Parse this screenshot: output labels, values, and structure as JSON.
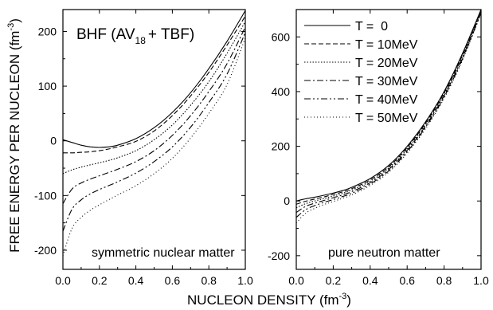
{
  "figure": {
    "ylabel": "FREE ENERGY PER NUCLEON (fm",
    "ylabel_sup": "-3",
    "ylabel_close": ")",
    "xlabel": "NUCLEON DENSITY (fm",
    "xlabel_sup": "-3",
    "xlabel_close": ")"
  },
  "chart_data": [
    {
      "type": "line",
      "panel_label": "symmetric nuclear matter",
      "inset_title": "BHF (AV",
      "inset_title_sub": "18",
      "inset_title_rest": "+ TBF)",
      "xlabel": "NUCLEON DENSITY (fm-3)",
      "ylabel": "FREE ENERGY PER NUCLEON (fm-3)",
      "xlim": [
        0.0,
        1.0
      ],
      "ylim": [
        -235,
        240
      ],
      "xticks": [
        "0.0",
        "0.2",
        "0.4",
        "0.6",
        "0.8",
        "1.0"
      ],
      "yticks": [
        "-200",
        "-100",
        "0",
        "100",
        "200"
      ],
      "x": [
        0.0,
        0.05,
        0.1,
        0.15,
        0.2,
        0.25,
        0.3,
        0.4,
        0.5,
        0.6,
        0.7,
        0.8,
        0.9,
        1.0
      ],
      "series": [
        {
          "name": "T =  0",
          "dash": "solid",
          "values": [
            2,
            -3,
            -8,
            -11,
            -12,
            -11,
            -8,
            4,
            24,
            52,
            88,
            132,
            182,
            238
          ]
        },
        {
          "name": "T = 10MeV",
          "dash": "dashed",
          "values": [
            -22,
            -22,
            -21,
            -20,
            -18,
            -15,
            -11,
            -1,
            18,
            46,
            82,
            125,
            175,
            228
          ]
        },
        {
          "name": "T = 20MeV",
          "dash": "dotted",
          "values": [
            -60,
            -53,
            -48,
            -44,
            -40,
            -36,
            -31,
            -18,
            2,
            29,
            65,
            108,
            160,
            218
          ]
        },
        {
          "name": "T = 30MeV",
          "dash": "dashdot",
          "values": [
            -115,
            -88,
            -77,
            -70,
            -64,
            -58,
            -52,
            -38,
            -18,
            10,
            46,
            90,
            141,
            208
          ]
        },
        {
          "name": "T = 40MeV",
          "dash": "dashdotdot",
          "values": [
            -165,
            -125,
            -108,
            -97,
            -89,
            -82,
            -75,
            -59,
            -38,
            -11,
            25,
            70,
            122,
            198
          ]
        },
        {
          "name": "T = 50MeV",
          "dash": "sparsedot",
          "values": [
            -210,
            -160,
            -140,
            -127,
            -117,
            -108,
            -99,
            -82,
            -60,
            -32,
            5,
            50,
            103,
            188
          ]
        }
      ]
    },
    {
      "type": "line",
      "panel_label": "pure neutron matter",
      "xlabel": "NUCLEON DENSITY (fm-3)",
      "xlim": [
        0.0,
        1.0
      ],
      "ylim": [
        -250,
        700
      ],
      "xticks": [
        "0.0",
        "0.2",
        "0.4",
        "0.6",
        "0.8",
        "1.0"
      ],
      "yticks": [
        "-200",
        "0",
        "200",
        "400",
        "600"
      ],
      "legend_position": "top-left",
      "x": [
        0.0,
        0.05,
        0.1,
        0.15,
        0.2,
        0.25,
        0.3,
        0.4,
        0.5,
        0.6,
        0.7,
        0.8,
        0.9,
        1.0
      ],
      "series": [
        {
          "name": "T =  0",
          "dash": "solid",
          "values": [
            0,
            8,
            14,
            21,
            29,
            38,
            50,
            82,
            130,
            200,
            290,
            400,
            540,
            700
          ]
        },
        {
          "name": "T = 10MeV",
          "dash": "dashed",
          "values": [
            -12,
            -1,
            7,
            15,
            24,
            33,
            45,
            77,
            125,
            195,
            285,
            395,
            535,
            697
          ]
        },
        {
          "name": "T = 20MeV",
          "dash": "dotted",
          "values": [
            -25,
            -10,
            0,
            9,
            18,
            28,
            40,
            72,
            120,
            190,
            280,
            390,
            530,
            694
          ]
        },
        {
          "name": "T = 30MeV",
          "dash": "dashdot",
          "values": [
            -42,
            -20,
            -8,
            2,
            12,
            22,
            34,
            67,
            115,
            185,
            275,
            385,
            525,
            691
          ]
        },
        {
          "name": "T = 40MeV",
          "dash": "dashdotdot",
          "values": [
            -60,
            -32,
            -17,
            -5,
            5,
            16,
            28,
            62,
            110,
            180,
            270,
            380,
            520,
            688
          ]
        },
        {
          "name": "T = 50MeV",
          "dash": "sparsedot",
          "values": [
            -80,
            -45,
            -27,
            -13,
            -2,
            10,
            22,
            57,
            105,
            175,
            265,
            375,
            515,
            685
          ]
        }
      ]
    }
  ]
}
